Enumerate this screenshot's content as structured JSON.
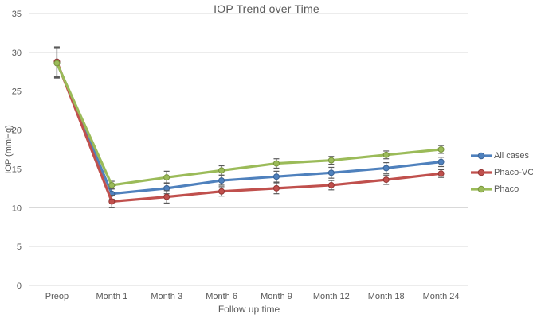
{
  "chart_data": {
    "type": "line",
    "title": "IOP Trend over Time",
    "xlabel": "Follow up time",
    "ylabel": "IOP (mmHg)",
    "categories": [
      "Preop",
      "Month 1",
      "Month 3",
      "Month 6",
      "Month 9",
      "Month 12",
      "Month 18",
      "Month 24"
    ],
    "series": [
      {
        "name": "All cases",
        "color": "#4F81BD",
        "marker_stroke": "#3A6294",
        "values": [
          28.7,
          11.8,
          12.5,
          13.5,
          14.0,
          14.5,
          15.1,
          15.9
        ],
        "errors": [
          1.9,
          0.7,
          0.7,
          0.6,
          0.7,
          0.7,
          0.7,
          0.6
        ]
      },
      {
        "name": "Phaco-VCST",
        "color": "#C0504D",
        "marker_stroke": "#943634",
        "values": [
          28.8,
          10.8,
          11.4,
          12.1,
          12.5,
          12.9,
          13.6,
          14.4
        ],
        "errors": [
          1.9,
          0.8,
          0.8,
          0.6,
          0.7,
          0.6,
          0.6,
          0.5
        ]
      },
      {
        "name": "Phaco",
        "color": "#9BBB59",
        "marker_stroke": "#77933C",
        "values": [
          28.6,
          12.9,
          13.9,
          14.8,
          15.7,
          16.1,
          16.8,
          17.5
        ],
        "errors": [
          1.9,
          0.5,
          0.8,
          0.6,
          0.6,
          0.5,
          0.5,
          0.5
        ]
      }
    ],
    "ylim": [
      0,
      35
    ],
    "yticks": [
      0,
      5,
      10,
      15,
      20,
      25,
      30,
      35
    ],
    "grid": true,
    "legend_position": "right",
    "marker": "circle",
    "colors": {
      "gridline": "#D9D9D9",
      "axis_text": "#595959",
      "title_text": "#595959",
      "error_bar": "#5A5A5A",
      "background": "#FFFFFF"
    }
  }
}
